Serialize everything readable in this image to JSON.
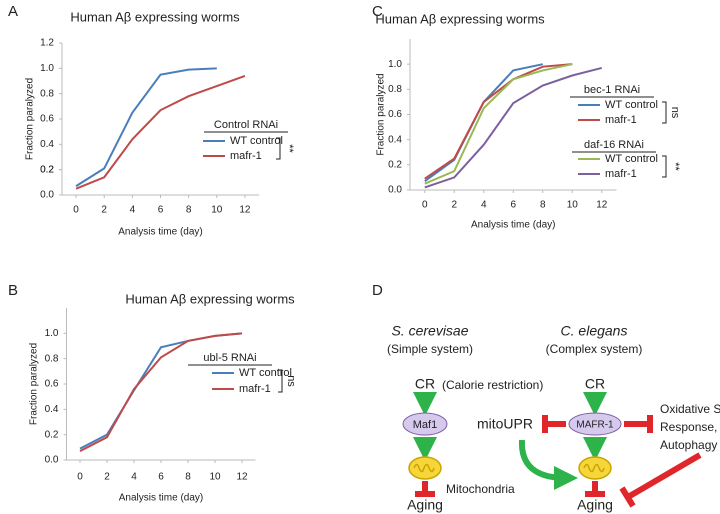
{
  "chart_data": [
    {
      "type": "line",
      "panel": "A",
      "title": "Human Aβ expressing worms",
      "xlabel": "Analysis time (day)",
      "ylabel": "Fraction paralyzed",
      "x": [
        0,
        2,
        4,
        6,
        8,
        10,
        12
      ],
      "xlim": [
        -1,
        13
      ],
      "xticks": [
        0,
        2,
        4,
        6,
        8,
        10,
        12
      ],
      "ylim": [
        0,
        1.2
      ],
      "yticks": [
        {
          "value": 0,
          "label": "0.0"
        },
        0.2,
        0.4,
        0.6,
        0.8,
        {
          "value": 1,
          "label": "1.0"
        },
        0.2,
        1.2
      ],
      "groups": [
        {
          "title": "Control RNAi",
          "significance": "**",
          "series": [
            {
              "name": "WT control",
              "color": "#4a7ebb",
              "values": [
                0.07,
                0.21,
                0.65,
                0.95,
                0.99,
                1.0,
                null
              ]
            },
            {
              "name": "mafr-1",
              "color": "#be4b48",
              "values": [
                0.05,
                0.14,
                0.44,
                0.67,
                0.78,
                0.86,
                0.94
              ]
            }
          ]
        }
      ]
    },
    {
      "type": "line",
      "panel": "B",
      "title": "Human Aβ expressing worms",
      "xlabel": "Analysis time (day)",
      "ylabel": "Fraction paralyzed",
      "x": [
        0,
        2,
        4,
        6,
        8,
        10,
        12
      ],
      "xlim": [
        -1,
        13
      ],
      "xticks": [
        0,
        2,
        4,
        6,
        8,
        10,
        12
      ],
      "ylim": [
        0,
        1.2
      ],
      "yticks": [
        {
          "value": 0,
          "label": "0.0"
        },
        0.2,
        0.4,
        0.6,
        0.8,
        {
          "value": 1,
          "label": "1.0"
        }
      ],
      "groups": [
        {
          "title": "ubl-5 RNAi",
          "significance": "ns",
          "series": [
            {
              "name": "WT control",
              "color": "#4a7ebb",
              "values": [
                0.09,
                0.2,
                0.55,
                0.89,
                0.94,
                0.98,
                1.0
              ]
            },
            {
              "name": "mafr-1",
              "color": "#be4b48",
              "values": [
                0.07,
                0.18,
                0.56,
                0.81,
                0.94,
                0.98,
                1.0
              ]
            }
          ]
        }
      ]
    },
    {
      "type": "line",
      "panel": "C",
      "title": "Human Aβ expressing worms",
      "xlabel": "Analysis time (day)",
      "ylabel": "Fraction paralyzed",
      "x": [
        0,
        2,
        4,
        6,
        8,
        10,
        12
      ],
      "xlim": [
        -1,
        13
      ],
      "xticks": [
        0,
        2,
        4,
        6,
        8,
        10,
        12
      ],
      "ylim": [
        0,
        1.2
      ],
      "yticks": [
        {
          "value": 0,
          "label": "0.0"
        },
        0.2,
        0.4,
        0.6,
        0.8,
        {
          "value": 1,
          "label": "1.0"
        }
      ],
      "groups": [
        {
          "title": "bec-1 RNAi",
          "significance": "ns",
          "series": [
            {
              "name": "WT control",
              "color": "#4a7ebb",
              "values": [
                0.07,
                0.24,
                0.7,
                0.95,
                1.0,
                null,
                null
              ]
            },
            {
              "name": "mafr-1",
              "color": "#be4b48",
              "values": [
                0.09,
                0.25,
                0.7,
                0.88,
                0.98,
                1.0,
                null
              ]
            }
          ]
        },
        {
          "title": "daf-16 RNAi",
          "significance": "**",
          "series": [
            {
              "name": "WT control",
              "color": "#98b954",
              "values": [
                0.05,
                0.15,
                0.65,
                0.88,
                0.95,
                1.0,
                null
              ]
            },
            {
              "name": "mafr-1",
              "color": "#7d60a0",
              "values": [
                0.02,
                0.1,
                0.36,
                0.69,
                0.83,
                0.91,
                0.97
              ]
            }
          ]
        }
      ]
    }
  ],
  "diagram": {
    "panel": "D",
    "left_title": "S. cerevisae",
    "left_subtitle": "(Simple system)",
    "right_title": "C. elegans",
    "right_subtitle": "(Complex system)",
    "left_input": "CR",
    "left_input_note": "(Calorie restriction)",
    "right_input": "CR",
    "left_node": "Maf1",
    "right_node": "MAFR-1",
    "side_node": "mitoUPR",
    "right_target": [
      "Oxidative Stress",
      "Response,",
      "Autophagy"
    ],
    "organelle": "Mitochondria",
    "left_output": "Aging",
    "right_output": "Aging"
  }
}
